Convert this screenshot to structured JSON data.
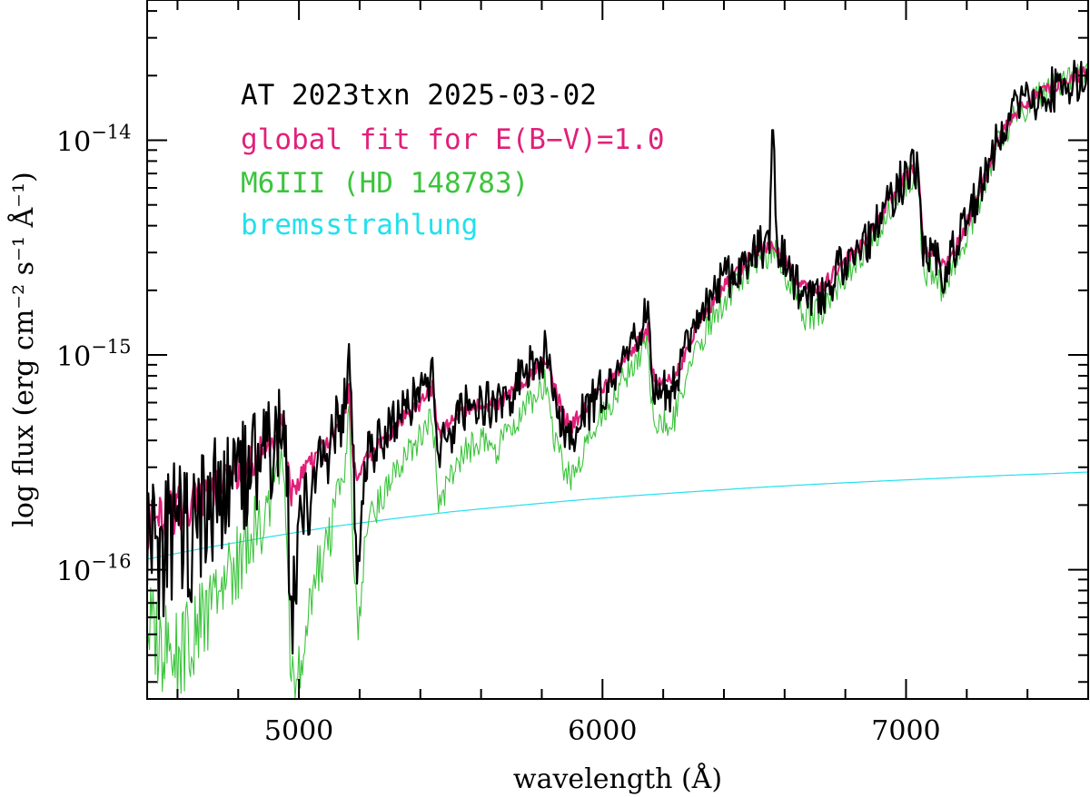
{
  "chart_data": {
    "type": "line",
    "xlabel": "wavelength (Å)",
    "ylabel": "log flux (erg cm⁻² s⁻¹ Å⁻¹)",
    "xlim": [
      4500,
      7600
    ],
    "ylim": [
      2.5e-17,
      4.5e-14
    ],
    "yscale": "log",
    "x_ticks": [
      {
        "value": 5000,
        "label": "5000"
      },
      {
        "value": 6000,
        "label": "6000"
      },
      {
        "value": 7000,
        "label": "7000"
      }
    ],
    "y_ticks": [
      {
        "value": 1e-16,
        "base": "10",
        "exp": "−16"
      },
      {
        "value": 1e-15,
        "base": "10",
        "exp": "−15"
      },
      {
        "value": 1e-14,
        "base": "10",
        "exp": "−14"
      }
    ],
    "grid": false,
    "legend_position": "top-left",
    "series": [
      {
        "name": "AT 2023txn 2025-03-02",
        "color": "#000000",
        "x": [
          4500,
          4550,
          4600,
          4650,
          4700,
          4750,
          4800,
          4850,
          4900,
          4950,
          4960,
          4975,
          5000,
          5050,
          5100,
          5150,
          5165,
          5180,
          5195,
          5220,
          5280,
          5350,
          5400,
          5440,
          5460,
          5500,
          5550,
          5600,
          5650,
          5700,
          5750,
          5800,
          5810,
          5850,
          5880,
          5900,
          5930,
          5960,
          6000,
          6050,
          6100,
          6150,
          6160,
          6180,
          6200,
          6230,
          6250,
          6300,
          6350,
          6400,
          6450,
          6500,
          6540,
          6550,
          6556,
          6562,
          6570,
          6580,
          6600,
          6650,
          6660,
          6680,
          6700,
          6720,
          6750,
          6800,
          6850,
          6900,
          6950,
          7000,
          7040,
          7050,
          7060,
          7080,
          7100,
          7120,
          7130,
          7150,
          7200,
          7250,
          7300,
          7350,
          7400,
          7450,
          7500,
          7550,
          7600
        ],
        "y": [
          1.5e-16,
          1.3e-16,
          1.6e-16,
          1.4e-16,
          2e-16,
          2.2e-16,
          2.5e-16,
          3e-16,
          3.6e-16,
          4.7e-16,
          2.8e-16,
          5e-17,
          1.6e-16,
          2.6e-16,
          3.8e-16,
          5.8e-16,
          8.5e-16,
          3e-16,
          8.5e-17,
          3.2e-16,
          4.2e-16,
          5.8e-16,
          6.5e-16,
          8e-16,
          3.6e-16,
          4.2e-16,
          5.8e-16,
          6.2e-16,
          5.5e-16,
          6.8e-16,
          8.4e-16,
          9.2e-16,
          1.05e-15,
          6e-16,
          4.3e-16,
          3.8e-16,
          5.2e-16,
          5.8e-16,
          6.9e-16,
          8.5e-16,
          1.15e-15,
          1.55e-15,
          9e-16,
          6.6e-16,
          7.2e-16,
          6.8e-16,
          8.5e-16,
          1.35e-15,
          1.75e-15,
          2.2e-15,
          2.5e-15,
          2.95e-15,
          3.3e-15,
          3e-15,
          6.5e-15,
          1.3e-14,
          4.5e-15,
          3e-15,
          2.75e-15,
          2.05e-15,
          1.7e-15,
          1.85e-15,
          1.75e-15,
          1.85e-15,
          2.2e-15,
          2.7e-15,
          3.1e-15,
          3.9e-15,
          5.3e-15,
          6.9e-15,
          7.6e-15,
          4.2e-15,
          2.8e-15,
          2.9e-15,
          2.7e-15,
          2.2e-15,
          2.6e-15,
          2.9e-15,
          4.2e-15,
          6.1e-15,
          9.8e-15,
          1.3e-14,
          1.5e-14,
          1.65e-14,
          1.75e-14,
          1.9e-14,
          1.95e-14
        ]
      },
      {
        "name": "global fit for E(B−V)=1.0",
        "color": "#e0207a",
        "x": [
          4500,
          4550,
          4600,
          4650,
          4700,
          4750,
          4800,
          4850,
          4900,
          4950,
          4960,
          4975,
          5000,
          5050,
          5100,
          5150,
          5165,
          5180,
          5195,
          5220,
          5280,
          5350,
          5400,
          5440,
          5460,
          5500,
          5550,
          5600,
          5650,
          5700,
          5750,
          5800,
          5810,
          5850,
          5880,
          5900,
          5930,
          5960,
          6000,
          6050,
          6100,
          6150,
          6160,
          6180,
          6200,
          6230,
          6250,
          6300,
          6350,
          6400,
          6450,
          6500,
          6540,
          6550,
          6556,
          6562,
          6570,
          6580,
          6600,
          6650,
          6660,
          6680,
          6700,
          6720,
          6750,
          6800,
          6850,
          6900,
          6950,
          7000,
          7040,
          7050,
          7060,
          7080,
          7100,
          7120,
          7130,
          7150,
          7200,
          7250,
          7300,
          7350,
          7400,
          7450,
          7500,
          7550,
          7600
        ],
        "y": [
          1.6e-16,
          1.75e-16,
          1.9e-16,
          2e-16,
          2.2e-16,
          2.5e-16,
          2.8e-16,
          3.2e-16,
          3.8e-16,
          4.6e-16,
          3.2e-16,
          2.2e-16,
          2.6e-16,
          3.2e-16,
          3.9e-16,
          5e-16,
          7.2e-16,
          3.2e-16,
          2.4e-16,
          3.3e-16,
          4e-16,
          5.2e-16,
          5.9e-16,
          7e-16,
          4.2e-16,
          4.8e-16,
          5.6e-16,
          6e-16,
          5.8e-16,
          6.7e-16,
          7.9e-16,
          9e-16,
          9.5e-16,
          6.5e-16,
          5e-16,
          4.7e-16,
          5.4e-16,
          6e-16,
          7e-16,
          8.5e-16,
          1.05e-15,
          1.35e-15,
          9.5e-16,
          7.2e-16,
          7.4e-16,
          7.6e-16,
          8.5e-16,
          1.25e-15,
          1.65e-15,
          2.1e-15,
          2.5e-15,
          2.95e-15,
          3.2e-15,
          3.3e-15,
          3.35e-15,
          3.35e-15,
          3.3e-15,
          3.1e-15,
          2.75e-15,
          2.2e-15,
          2.1e-15,
          2.05e-15,
          2e-15,
          2.05e-15,
          2.3e-15,
          2.75e-15,
          3.3e-15,
          4e-15,
          5.3e-15,
          6.8e-15,
          7.3e-15,
          4.5e-15,
          3.1e-15,
          3e-15,
          2.9e-15,
          2.6e-15,
          2.7e-15,
          2.9e-15,
          4.1e-15,
          6e-15,
          9.8e-15,
          1.3e-14,
          1.5e-14,
          1.7e-14,
          1.85e-14,
          2e-14,
          2.05e-14
        ]
      },
      {
        "name": "M6III (HD 148783)",
        "color": "#3cc43c",
        "x": [
          4500,
          4550,
          4600,
          4650,
          4700,
          4750,
          4800,
          4850,
          4900,
          4950,
          4960,
          4975,
          5000,
          5050,
          5100,
          5150,
          5165,
          5180,
          5195,
          5220,
          5280,
          5350,
          5400,
          5440,
          5460,
          5500,
          5550,
          5600,
          5650,
          5700,
          5750,
          5800,
          5810,
          5850,
          5880,
          5900,
          5930,
          5960,
          6000,
          6050,
          6100,
          6150,
          6160,
          6180,
          6200,
          6230,
          6250,
          6300,
          6350,
          6400,
          6450,
          6500,
          6540,
          6550,
          6556,
          6562,
          6570,
          6580,
          6600,
          6650,
          6660,
          6680,
          6700,
          6720,
          6750,
          6800,
          6850,
          6900,
          6950,
          7000,
          7040,
          7050,
          7060,
          7080,
          7100,
          7120,
          7130,
          7150,
          7200,
          7250,
          7300,
          7350,
          7400,
          7450,
          7500,
          7550,
          7600
        ],
        "y": [
          5.5e-17,
          4.5e-17,
          4e-17,
          5e-17,
          6.5e-17,
          8.5e-17,
          1.1e-16,
          1.5e-16,
          1.9e-16,
          3e-16,
          1.2e-16,
          2.8e-17,
          3.5e-17,
          9e-17,
          1.4e-16,
          3e-16,
          5e-16,
          1.1e-16,
          5e-17,
          1.5e-16,
          2.3e-16,
          3.4e-16,
          4.1e-16,
          5.2e-16,
          2e-16,
          2.7e-16,
          3.6e-16,
          4e-16,
          3.6e-16,
          4.6e-16,
          5.8e-16,
          6.8e-16,
          7.4e-16,
          3.6e-16,
          2.9e-16,
          2.6e-16,
          3.4e-16,
          4.2e-16,
          5.4e-16,
          6.8e-16,
          9e-16,
          1.2e-15,
          6.5e-16,
          4.8e-16,
          4.9e-16,
          4.7e-16,
          6e-16,
          9.8e-16,
          1.35e-15,
          1.8e-15,
          2.2e-15,
          2.6e-15,
          2.9e-15,
          3e-15,
          3.05e-15,
          3.05e-15,
          3e-15,
          2.7e-15,
          2.35e-15,
          1.75e-15,
          1.5e-15,
          1.5e-15,
          1.55e-15,
          1.6e-15,
          1.9e-15,
          2.35e-15,
          2.9e-15,
          3.6e-15,
          4.8e-15,
          6.4e-15,
          6.9e-15,
          3.6e-15,
          2.4e-15,
          2.5e-15,
          2.4e-15,
          2e-15,
          2.2e-15,
          2.5e-15,
          3.6e-15,
          5.6e-15,
          9.4e-15,
          1.25e-14,
          1.45e-14,
          1.65e-14,
          1.8e-14,
          1.95e-14,
          2e-14
        ]
      },
      {
        "name": "bremsstrahlung",
        "color": "#22e0ee",
        "x": [
          4500,
          4700,
          4900,
          5100,
          5300,
          5500,
          5700,
          5900,
          6100,
          6300,
          6500,
          6700,
          6900,
          7100,
          7300,
          7500,
          7600
        ],
        "y": [
          1.12e-16,
          1.27e-16,
          1.42e-16,
          1.58e-16,
          1.72e-16,
          1.86e-16,
          1.98e-16,
          2.1e-16,
          2.21e-16,
          2.31e-16,
          2.41e-16,
          2.5e-16,
          2.58e-16,
          2.66e-16,
          2.74e-16,
          2.81e-16,
          2.85e-16
        ]
      }
    ]
  }
}
